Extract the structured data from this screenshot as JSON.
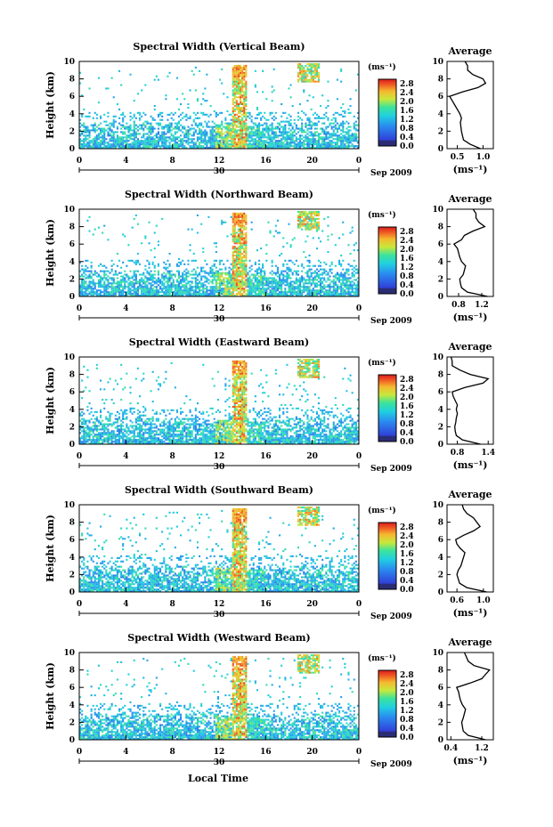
{
  "figure": {
    "xlabel": "Local Time",
    "date_day": "30",
    "date_month": "Sep 2009",
    "colorbar": {
      "unit": "(ms⁻¹)",
      "ticks": [
        "2.8",
        "2.4",
        "2.0",
        "1.6",
        "1.2",
        "0.8",
        "0.4",
        "0.0"
      ]
    },
    "average_title": "Average"
  },
  "chart_data": [
    {
      "type": "heatmap",
      "title": "Spectral Width (Vertical Beam)",
      "xlabel": "Local Time",
      "ylabel": "Height (km)",
      "x_ticks": [
        "0",
        "4",
        "8",
        "12",
        "16",
        "20",
        "0"
      ],
      "xlim": [
        0,
        24
      ],
      "y_ticks": [
        "0",
        "2",
        "4",
        "6",
        "8",
        "10"
      ],
      "ylim": [
        0,
        10
      ],
      "colorbar_range": [
        0.0,
        3.0
      ],
      "profile": {
        "title": "Average",
        "xlabel": "(ms⁻¹)",
        "ylabel": "Height (km)",
        "x_ticks": [
          "0.5",
          "1.0"
        ],
        "xlim": [
          0.3,
          1.2
        ],
        "height": [
          0,
          0.5,
          1,
          1.5,
          2,
          2.5,
          3,
          3.5,
          4,
          4.5,
          5,
          5.5,
          6,
          6.5,
          7,
          7.5,
          8,
          8.5,
          9,
          9.5,
          10
        ],
        "values": [
          0.95,
          0.75,
          0.62,
          0.6,
          0.58,
          0.57,
          0.56,
          0.58,
          0.55,
          0.5,
          0.45,
          0.4,
          0.35,
          0.6,
          0.9,
          1.05,
          1.0,
          0.8,
          0.7,
          0.7,
          0.65
        ]
      }
    },
    {
      "type": "heatmap",
      "title": "Spectral Width (Northward Beam)",
      "xlabel": "Local Time",
      "ylabel": "Height (km)",
      "x_ticks": [
        "0",
        "4",
        "8",
        "12",
        "16",
        "20",
        "0"
      ],
      "xlim": [
        0,
        24
      ],
      "y_ticks": [
        "0",
        "2",
        "4",
        "6",
        "8",
        "10"
      ],
      "ylim": [
        0,
        10
      ],
      "colorbar_range": [
        0.0,
        3.0
      ],
      "profile": {
        "title": "Average",
        "xlabel": "(ms⁻¹)",
        "ylabel": "Height (km)",
        "x_ticks": [
          "0.8",
          "1.2"
        ],
        "xlim": [
          0.6,
          1.4
        ],
        "height": [
          0,
          0.5,
          1,
          1.5,
          2,
          2.5,
          3,
          3.5,
          4,
          4.5,
          5,
          5.5,
          6,
          6.5,
          7,
          7.5,
          8,
          8.5,
          9,
          9.5,
          10
        ],
        "values": [
          1.3,
          0.95,
          0.85,
          0.83,
          0.82,
          0.88,
          0.9,
          0.92,
          0.85,
          0.82,
          0.8,
          0.78,
          0.72,
          0.85,
          0.9,
          1.05,
          1.25,
          1.15,
          1.1,
          1.1,
          1.05
        ]
      }
    },
    {
      "type": "heatmap",
      "title": "Spectral Width (Eastward Beam)",
      "xlabel": "Local Time",
      "ylabel": "Height (km)",
      "x_ticks": [
        "0",
        "4",
        "8",
        "12",
        "16",
        "20",
        "0"
      ],
      "xlim": [
        0,
        24
      ],
      "y_ticks": [
        "0",
        "2",
        "4",
        "6",
        "8",
        "10"
      ],
      "ylim": [
        0,
        10
      ],
      "colorbar_range": [
        0.0,
        3.0
      ],
      "profile": {
        "title": "Average",
        "xlabel": "(ms⁻¹)",
        "ylabel": "Height (km)",
        "x_ticks": [
          "0.8",
          "1.4"
        ],
        "xlim": [
          0.6,
          1.5
        ],
        "height": [
          0,
          0.5,
          1,
          1.5,
          2,
          2.5,
          3,
          3.5,
          4,
          4.5,
          5,
          5.5,
          6,
          6.5,
          7,
          7.5,
          8,
          8.5,
          9,
          9.5,
          10
        ],
        "values": [
          1.25,
          0.9,
          0.78,
          0.76,
          0.75,
          0.77,
          0.78,
          0.8,
          0.78,
          0.8,
          0.76,
          0.72,
          0.7,
          0.95,
          1.3,
          1.4,
          1.05,
          0.85,
          0.7,
          0.7,
          0.68
        ]
      }
    },
    {
      "type": "heatmap",
      "title": "Spectral Width (Southward Beam)",
      "xlabel": "Local Time",
      "ylabel": "Height (km)",
      "x_ticks": [
        "0",
        "4",
        "8",
        "12",
        "16",
        "20",
        "0"
      ],
      "xlim": [
        0,
        24
      ],
      "y_ticks": [
        "0",
        "2",
        "4",
        "6",
        "8",
        "10"
      ],
      "ylim": [
        0,
        10
      ],
      "colorbar_range": [
        0.0,
        3.0
      ],
      "profile": {
        "title": "Average",
        "xlabel": "(ms⁻¹)",
        "ylabel": "Height (km)",
        "x_ticks": [
          "0.6",
          "1.0"
        ],
        "xlim": [
          0.45,
          1.15
        ],
        "height": [
          0,
          0.5,
          1,
          1.5,
          2,
          2.5,
          3,
          3.5,
          4,
          4.5,
          5,
          5.5,
          6,
          6.5,
          7,
          7.5,
          8,
          8.5,
          9,
          9.5,
          10
        ],
        "values": [
          1.05,
          0.75,
          0.64,
          0.62,
          0.6,
          0.62,
          0.66,
          0.68,
          0.7,
          0.72,
          0.65,
          0.6,
          0.58,
          0.7,
          0.85,
          0.95,
          0.9,
          0.85,
          0.75,
          0.7,
          0.68
        ]
      }
    },
    {
      "type": "heatmap",
      "title": "Spectral Width (Westward Beam)",
      "xlabel": "Local Time",
      "ylabel": "Height (km)",
      "x_ticks": [
        "0",
        "4",
        "8",
        "12",
        "16",
        "20",
        "0"
      ],
      "xlim": [
        0,
        24
      ],
      "y_ticks": [
        "0",
        "2",
        "4",
        "6",
        "8",
        "10"
      ],
      "ylim": [
        0,
        10
      ],
      "colorbar_range": [
        0.0,
        3.0
      ],
      "profile": {
        "title": "Average",
        "xlabel": "(ms⁻¹)",
        "ylabel": "Height (km)",
        "x_ticks": [
          "0.4",
          "1.2"
        ],
        "xlim": [
          0.3,
          1.5
        ],
        "height": [
          0,
          0.5,
          1,
          1.5,
          2,
          2.5,
          3,
          3.5,
          4,
          4.5,
          5,
          5.5,
          6,
          6.5,
          7,
          7.5,
          8,
          8.5,
          9,
          9.5,
          10
        ],
        "values": [
          1.3,
          0.85,
          0.72,
          0.7,
          0.68,
          0.72,
          0.75,
          0.78,
          0.7,
          0.65,
          0.62,
          0.6,
          0.55,
          0.9,
          1.2,
          1.3,
          1.4,
          1.0,
          0.85,
          0.8,
          0.75
        ]
      }
    }
  ]
}
